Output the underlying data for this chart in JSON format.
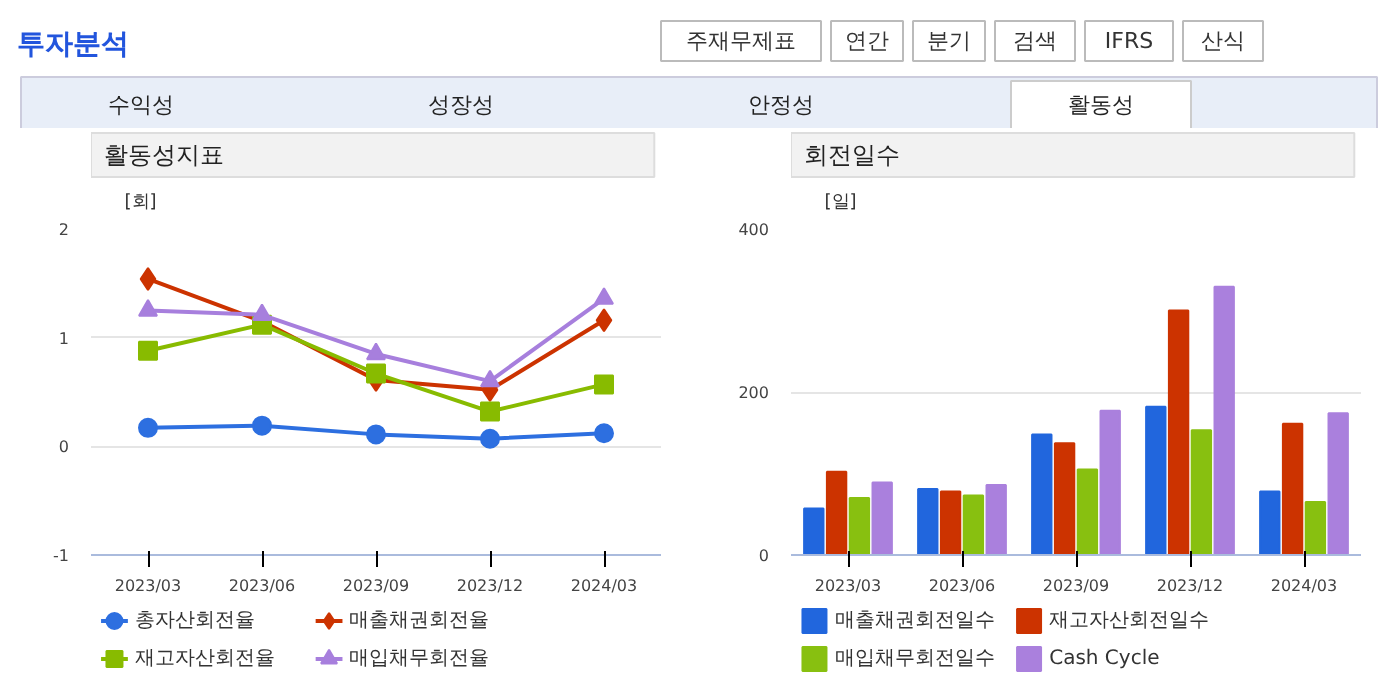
{
  "chart_data": [
    {
      "type": "other",
      "title": "투자분석",
      "annotations": [
        "주재무제표",
        "연간",
        "분기",
        "검색",
        "IFRS",
        "산식",
        "수익성",
        "성장성",
        "안정성",
        "활동성"
      ]
    },
    {
      "type": "line",
      "title": "활동성지표",
      "ylabel": "[회]",
      "categories": [
        "2023/03",
        "2023/06",
        "2023/09",
        "2023/12",
        "2024/03"
      ],
      "ylim": [
        -1,
        2
      ],
      "yticks": [
        -1,
        0,
        1,
        2
      ],
      "grid": "y",
      "legend": "bottom",
      "series": [
        {
          "name": "총자산회전율",
          "color": "#2d6fe0",
          "marker": "circle",
          "values": [
            0.17,
            0.19,
            0.11,
            0.07,
            0.12
          ]
        },
        {
          "name": "매출채권회전율",
          "color": "#cc3300",
          "marker": "diamond",
          "values": [
            1.54,
            1.15,
            0.61,
            0.52,
            1.16
          ]
        },
        {
          "name": "재고자산회전율",
          "color": "#88bb00",
          "marker": "square",
          "values": [
            0.88,
            1.12,
            0.67,
            0.32,
            0.57
          ]
        },
        {
          "name": "매입채무회전율",
          "color": "#a77fdd",
          "marker": "triangle",
          "values": [
            1.25,
            1.21,
            0.85,
            0.6,
            1.36
          ]
        }
      ]
    },
    {
      "type": "bar",
      "title": "회전일수",
      "ylabel": "[일]",
      "categories": [
        "2023/03",
        "2023/06",
        "2023/09",
        "2023/12",
        "2024/03"
      ],
      "ylim": [
        0,
        400
      ],
      "yticks": [
        0,
        200,
        400
      ],
      "grid": "y",
      "legend": "bottom",
      "series": [
        {
          "name": "매출채권회전일수",
          "color": "#2166dd",
          "values": [
            57,
            81,
            148,
            182,
            78
          ]
        },
        {
          "name": "재고자산회전일수",
          "color": "#cc3300",
          "values": [
            102,
            78,
            137,
            300,
            161
          ]
        },
        {
          "name": "매입채무회전일수",
          "color": "#88c010",
          "values": [
            70,
            73,
            105,
            153,
            65
          ]
        },
        {
          "name": "Cash Cycle",
          "color": "#aa80dd",
          "values": [
            89,
            86,
            177,
            329,
            174
          ]
        }
      ]
    }
  ]
}
